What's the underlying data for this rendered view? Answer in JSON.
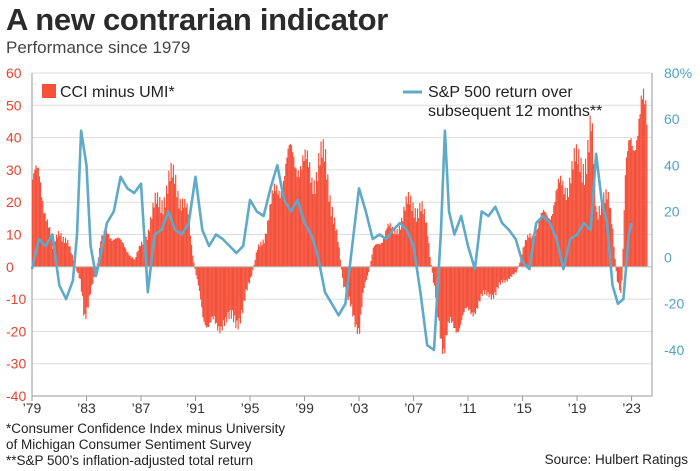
{
  "header": {
    "title": "A new contrarian indicator",
    "subtitle": "Performance since 1979"
  },
  "footnotes": {
    "note1_line1": "*Consumer Confidence Index minus University",
    "note1_line2": "of Michigan Consumer Sentiment Survey",
    "note2": "**S&P 500’s inflation-adjusted total return",
    "source": "Source: Hulbert Ratings"
  },
  "chart_data": {
    "type": "bar",
    "x_axis": {
      "ticks": [
        "’79",
        "’83",
        "’87",
        "’91",
        "’95",
        "’99",
        "’03",
        "’07",
        "’11",
        "’15",
        "’19",
        "’23"
      ],
      "range": [
        1979,
        2024.5
      ]
    },
    "y_left": {
      "range": [
        -40,
        60
      ],
      "ticks": [
        "60",
        "50",
        "40",
        "30",
        "20",
        "10",
        "0",
        "-10",
        "-20",
        "-30",
        "-40"
      ]
    },
    "y_right": {
      "range": [
        -60,
        80
      ],
      "ticks": [
        "80%",
        "60",
        "40",
        "20",
        "0",
        "-20",
        "-40"
      ]
    },
    "colors": {
      "bars": "#f4513b",
      "line": "#5fa9c9",
      "left_axis": "#e8442f",
      "right_axis": "#4fa3c4"
    },
    "grid": "horizontal",
    "legend": [
      "top-left",
      "top-right"
    ],
    "series": [
      {
        "name": "CCI minus UMI*",
        "type": "bar",
        "axis": "left",
        "points": [
          [
            1979.0,
            27
          ],
          [
            1979.5,
            26
          ],
          [
            1980.0,
            18
          ],
          [
            1980.5,
            5
          ],
          [
            1981.0,
            12
          ],
          [
            1981.5,
            8
          ],
          [
            1982.0,
            2
          ],
          [
            1982.5,
            -5
          ],
          [
            1982.8,
            -15
          ],
          [
            1983.2,
            -8
          ],
          [
            1983.6,
            -3
          ],
          [
            1984.0,
            8
          ],
          [
            1984.5,
            10
          ],
          [
            1985.0,
            10
          ],
          [
            1985.5,
            7
          ],
          [
            1986.0,
            5
          ],
          [
            1986.5,
            2
          ],
          [
            1987.0,
            7
          ],
          [
            1987.5,
            12
          ],
          [
            1988.0,
            18
          ],
          [
            1988.5,
            22
          ],
          [
            1989.0,
            25
          ],
          [
            1989.5,
            26
          ],
          [
            1990.0,
            22
          ],
          [
            1990.4,
            15
          ],
          [
            1990.7,
            5
          ],
          [
            1991.0,
            -3
          ],
          [
            1991.5,
            -14
          ],
          [
            1992.0,
            -18
          ],
          [
            1992.5,
            -20
          ],
          [
            1993.0,
            -15
          ],
          [
            1993.5,
            -18
          ],
          [
            1994.0,
            -16
          ],
          [
            1994.5,
            -12
          ],
          [
            1995.0,
            -4
          ],
          [
            1995.5,
            5
          ],
          [
            1996.0,
            10
          ],
          [
            1996.5,
            18
          ],
          [
            1997.0,
            25
          ],
          [
            1997.5,
            30
          ],
          [
            1998.0,
            33
          ],
          [
            1998.5,
            35
          ],
          [
            1999.0,
            30
          ],
          [
            1999.5,
            28
          ],
          [
            2000.0,
            33
          ],
          [
            2000.5,
            30
          ],
          [
            2001.0,
            20
          ],
          [
            2001.4,
            8
          ],
          [
            2001.8,
            -5
          ],
          [
            2002.2,
            -12
          ],
          [
            2002.6,
            -15
          ],
          [
            2003.0,
            -18
          ],
          [
            2003.3,
            -8
          ],
          [
            2003.6,
            -3
          ],
          [
            2004.0,
            5
          ],
          [
            2004.5,
            8
          ],
          [
            2005.0,
            12
          ],
          [
            2005.5,
            10
          ],
          [
            2006.0,
            15
          ],
          [
            2006.5,
            18
          ],
          [
            2007.0,
            20
          ],
          [
            2007.5,
            18
          ],
          [
            2008.0,
            10
          ],
          [
            2008.4,
            -5
          ],
          [
            2008.8,
            -15
          ],
          [
            2009.2,
            -25
          ],
          [
            2009.6,
            -20
          ],
          [
            2010.0,
            -18
          ],
          [
            2010.5,
            -16
          ],
          [
            2011.0,
            -15
          ],
          [
            2011.5,
            -12
          ],
          [
            2012.0,
            -10
          ],
          [
            2012.5,
            -8
          ],
          [
            2013.0,
            -8
          ],
          [
            2013.5,
            -5
          ],
          [
            2014.0,
            -3
          ],
          [
            2014.5,
            -2
          ],
          [
            2015.0,
            5
          ],
          [
            2015.5,
            10
          ],
          [
            2016.0,
            12
          ],
          [
            2016.5,
            15
          ],
          [
            2017.0,
            18
          ],
          [
            2017.5,
            22
          ],
          [
            2018.0,
            25
          ],
          [
            2018.5,
            30
          ],
          [
            2019.0,
            30
          ],
          [
            2019.5,
            35
          ],
          [
            2020.0,
            40
          ],
          [
            2020.4,
            15
          ],
          [
            2020.8,
            25
          ],
          [
            2021.2,
            20
          ],
          [
            2021.6,
            10
          ],
          [
            2021.9,
            -5
          ],
          [
            2022.2,
            -10
          ],
          [
            2022.5,
            25
          ],
          [
            2022.9,
            40
          ],
          [
            2023.3,
            45
          ],
          [
            2023.7,
            46
          ],
          [
            2024.1,
            44
          ]
        ]
      },
      {
        "name": "S&P 500 return over subsequent 12 months**",
        "type": "line",
        "axis": "right",
        "points": [
          [
            1979.0,
            -5
          ],
          [
            1979.5,
            8
          ],
          [
            1980.0,
            5
          ],
          [
            1980.5,
            10
          ],
          [
            1981.0,
            -12
          ],
          [
            1981.5,
            -18
          ],
          [
            1982.0,
            -10
          ],
          [
            1982.3,
            10
          ],
          [
            1982.6,
            55
          ],
          [
            1983.0,
            40
          ],
          [
            1983.3,
            5
          ],
          [
            1983.7,
            -8
          ],
          [
            1984.0,
            0
          ],
          [
            1984.5,
            15
          ],
          [
            1985.0,
            20
          ],
          [
            1985.5,
            35
          ],
          [
            1986.0,
            30
          ],
          [
            1986.5,
            28
          ],
          [
            1987.0,
            32
          ],
          [
            1987.5,
            -15
          ],
          [
            1988.0,
            10
          ],
          [
            1988.5,
            12
          ],
          [
            1989.0,
            20
          ],
          [
            1989.5,
            12
          ],
          [
            1990.0,
            10
          ],
          [
            1990.5,
            15
          ],
          [
            1991.0,
            35
          ],
          [
            1991.5,
            12
          ],
          [
            1992.0,
            5
          ],
          [
            1992.5,
            10
          ],
          [
            1993.0,
            8
          ],
          [
            1993.5,
            5
          ],
          [
            1994.0,
            2
          ],
          [
            1994.5,
            5
          ],
          [
            1995.0,
            25
          ],
          [
            1995.5,
            20
          ],
          [
            1996.0,
            18
          ],
          [
            1996.5,
            30
          ],
          [
            1997.0,
            40
          ],
          [
            1997.5,
            25
          ],
          [
            1998.0,
            20
          ],
          [
            1998.5,
            25
          ],
          [
            1999.0,
            15
          ],
          [
            1999.5,
            10
          ],
          [
            2000.0,
            0
          ],
          [
            2000.5,
            -15
          ],
          [
            2001.0,
            -20
          ],
          [
            2001.5,
            -25
          ],
          [
            2002.0,
            -20
          ],
          [
            2002.5,
            5
          ],
          [
            2003.0,
            30
          ],
          [
            2003.5,
            20
          ],
          [
            2004.0,
            8
          ],
          [
            2004.5,
            10
          ],
          [
            2005.0,
            8
          ],
          [
            2005.5,
            12
          ],
          [
            2006.0,
            15
          ],
          [
            2006.5,
            12
          ],
          [
            2007.0,
            5
          ],
          [
            2007.5,
            -15
          ],
          [
            2008.0,
            -38
          ],
          [
            2008.5,
            -40
          ],
          [
            2009.0,
            10
          ],
          [
            2009.3,
            55
          ],
          [
            2009.6,
            20
          ],
          [
            2010.0,
            10
          ],
          [
            2010.5,
            18
          ],
          [
            2011.0,
            5
          ],
          [
            2011.5,
            -5
          ],
          [
            2012.0,
            20
          ],
          [
            2012.5,
            18
          ],
          [
            2013.0,
            22
          ],
          [
            2013.5,
            15
          ],
          [
            2014.0,
            12
          ],
          [
            2014.5,
            8
          ],
          [
            2015.0,
            -2
          ],
          [
            2015.5,
            -5
          ],
          [
            2016.0,
            15
          ],
          [
            2016.5,
            18
          ],
          [
            2017.0,
            15
          ],
          [
            2017.5,
            8
          ],
          [
            2018.0,
            -5
          ],
          [
            2018.5,
            8
          ],
          [
            2019.0,
            10
          ],
          [
            2019.5,
            15
          ],
          [
            2020.0,
            12
          ],
          [
            2020.4,
            45
          ],
          [
            2020.8,
            25
          ],
          [
            2021.2,
            15
          ],
          [
            2021.6,
            -12
          ],
          [
            2022.0,
            -20
          ],
          [
            2022.4,
            -18
          ],
          [
            2022.8,
            10
          ],
          [
            2023.0,
            15
          ]
        ]
      }
    ]
  }
}
